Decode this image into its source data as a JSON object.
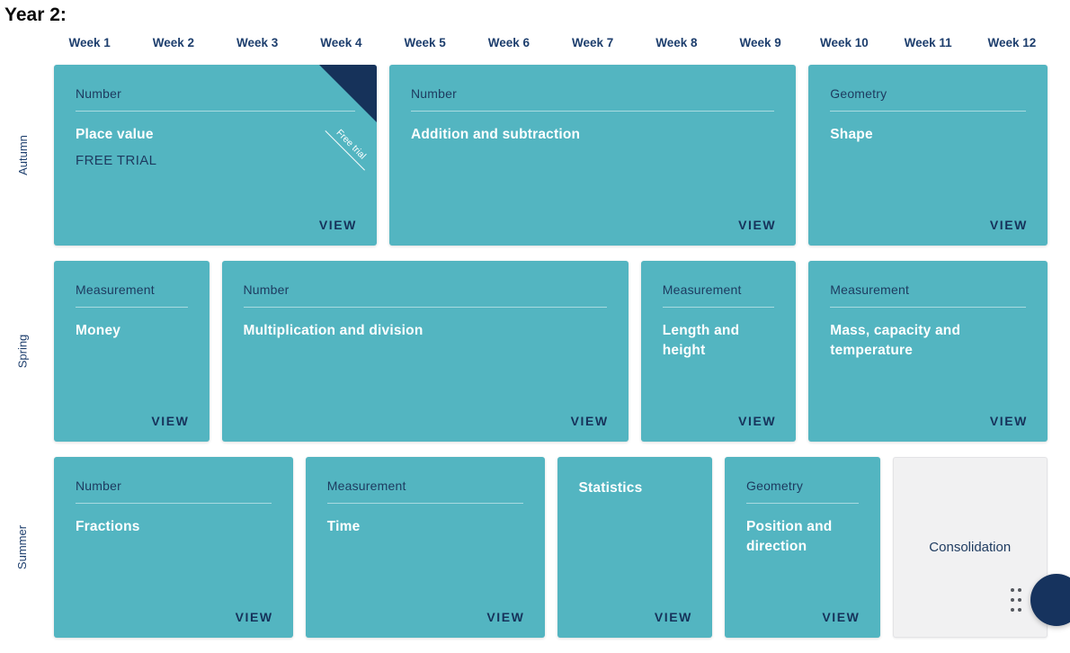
{
  "page_title": "Year 2:",
  "labels": {
    "view": "VIEW"
  },
  "colors": {
    "card_teal": "#53b5c1",
    "navy_dark": "#16325a",
    "text_navy": "#1d3e6d",
    "card_label_navy": "#1d3a5f",
    "card_title_white": "#ffffff",
    "consolidation_bg": "#f1f1f2"
  },
  "icons": {
    "drag_handle_icon": "six-dot-grid",
    "fab_icon": "navy-circle-partially-offscreen"
  },
  "week_header": [
    "Week 1",
    "Week 2",
    "Week 3",
    "Week 4",
    "Week 5",
    "Week 6",
    "Week 7",
    "Week 8",
    "Week 9",
    "Week 10",
    "Week 11",
    "Week 12"
  ],
  "terms": [
    {
      "label": "Autumn",
      "cards": [
        {
          "category": "Number",
          "title": "Place value",
          "subtitle": "FREE TRIAL",
          "ribbon": "Free trial",
          "col_span": 4
        },
        {
          "category": "Number",
          "title": "Addition and subtraction",
          "col_span": 5
        },
        {
          "category": "Geometry",
          "title": "Shape",
          "col_span": 3
        }
      ]
    },
    {
      "label": "Spring",
      "cards": [
        {
          "category": "Measurement",
          "title": "Money",
          "col_span": 2
        },
        {
          "category": "Number",
          "title": "Multiplication and division",
          "col_span": 5
        },
        {
          "category": "Measurement",
          "title": "Length and height",
          "col_span": 2
        },
        {
          "category": "Measurement",
          "title": "Mass, capacity and temperature",
          "col_span": 3
        }
      ]
    },
    {
      "label": "Summer",
      "cards": [
        {
          "category": "Number",
          "title": "Fractions",
          "col_span": 3
        },
        {
          "category": "Measurement",
          "title": "Time",
          "col_span": 3
        },
        {
          "title": "Statistics",
          "col_span": 2
        },
        {
          "category": "Geometry",
          "title": "Position and direction",
          "col_span": 2
        },
        {
          "title": "Consolidation",
          "col_span": 2,
          "type": "consolidation"
        }
      ]
    }
  ]
}
